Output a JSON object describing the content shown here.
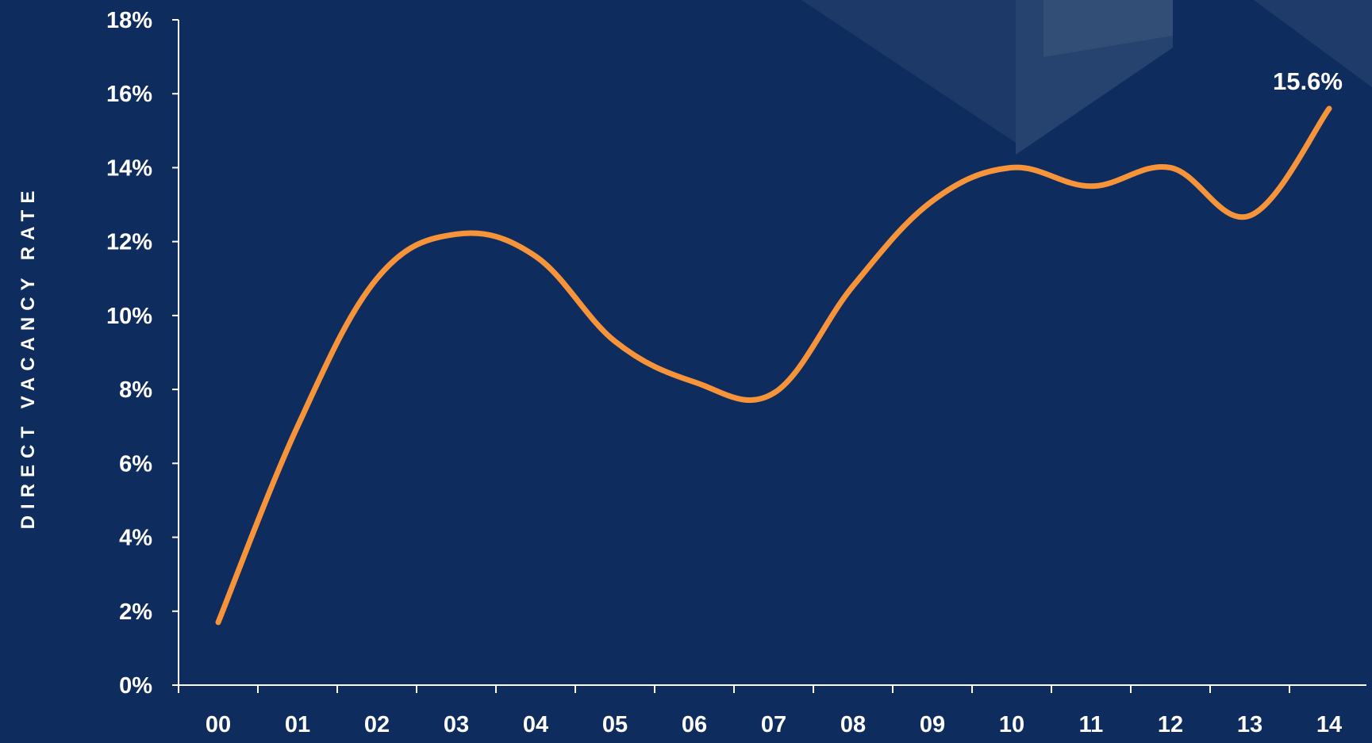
{
  "chart_data": {
    "type": "line",
    "title": "",
    "xlabel": "",
    "ylabel": "DIRECT VACANCY RATE",
    "x": [
      "00",
      "01",
      "02",
      "03",
      "04",
      "05",
      "06",
      "07",
      "08",
      "09",
      "10",
      "11",
      "12",
      "13",
      "14"
    ],
    "series": [
      {
        "values": [
          1.7,
          7.0,
          11.0,
          12.2,
          11.6,
          9.3,
          8.2,
          7.9,
          10.8,
          13.1,
          14.0,
          13.5,
          14.0,
          12.7,
          15.6
        ],
        "color": "#f7943a"
      }
    ],
    "ylim": [
      0,
      18
    ],
    "yticks": [
      "0%",
      "2%",
      "4%",
      "6%",
      "8%",
      "10%",
      "12%",
      "14%",
      "16%",
      "18%"
    ],
    "grid": false,
    "annotations": [
      {
        "label": "15.6%",
        "x": "14"
      }
    ],
    "colors": {
      "background": "#0e2d5e",
      "line": "#f7943a",
      "axis": "#ffffff",
      "text": "#ffffff"
    }
  }
}
